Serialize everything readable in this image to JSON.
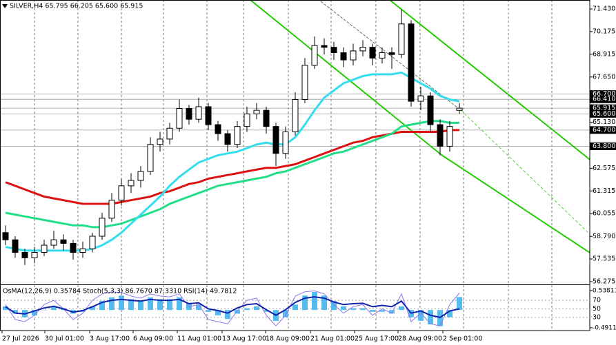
{
  "chart_data": {
    "type": "candlestick",
    "title": "SILVER,H4 65.795 66.205 65.600 65.915",
    "ylim": [
      56.12,
      71.93
    ],
    "yticks": [
      {
        "value": 71.43,
        "label": "71.430"
      },
      70.175,
      68.915,
      {
        "value": 67.65,
        "label": "67.650"
      },
      {
        "value": 65.13,
        "label": "65.130"
      },
      62.575,
      61.315,
      60.055,
      {
        "value": 58.79,
        "label": "58.790"
      },
      57.535,
      56.275
    ],
    "levels": [
      {
        "value": 66.7,
        "label": "66.700"
      },
      {
        "value": 66.41,
        "label": "66.410"
      },
      65.915,
      {
        "value": 65.6,
        "label": "65.600"
      },
      {
        "value": 64.7,
        "label": "64.700"
      },
      {
        "value": 63.8,
        "label": "63.800"
      }
    ],
    "x_labels": [
      "27 Jul 2026",
      "30 Jul 01:00",
      "3 Aug 17:00",
      "6 Aug 09:00",
      "11 Aug 01:00",
      "13 Aug 17:00",
      "18 Aug 09:00",
      "21 Aug 01:00",
      "25 Aug 17:00",
      "28 Aug 09:00",
      "2 Sep 01:00"
    ],
    "open": [
      59.0,
      58.6,
      57.9,
      57.6,
      57.9,
      58.3,
      58.6,
      58.4,
      57.9,
      58.1,
      58.8,
      59.8,
      60.8,
      61.6,
      61.9,
      62.4,
      63.9,
      64.2,
      64.8,
      65.9,
      65.3,
      66.0,
      65.0,
      64.5,
      63.9,
      64.9,
      65.6,
      65.8,
      64.9,
      63.4,
      64.6,
      66.4,
      68.3,
      69.4,
      69.3,
      69.0,
      68.6,
      69.1,
      69.3,
      68.7,
      69.0,
      68.9,
      70.6,
      66.3,
      66.6,
      65.0,
      63.8,
      65.795
    ],
    "high": [
      59.4,
      58.8,
      58.1,
      58.2,
      58.6,
      59.1,
      58.9,
      58.6,
      58.5,
      59.0,
      60.1,
      61.2,
      62.0,
      62.3,
      62.7,
      64.3,
      64.6,
      65.1,
      66.4,
      66.1,
      66.5,
      66.2,
      65.2,
      64.7,
      65.2,
      66.0,
      66.2,
      66.0,
      65.1,
      64.9,
      66.8,
      68.7,
      69.9,
      69.8,
      69.6,
      69.3,
      69.5,
      69.7,
      69.5,
      69.3,
      69.3,
      71.4,
      70.8,
      67.1,
      66.8,
      65.3,
      65.2,
      66.205
    ],
    "low": [
      58.3,
      57.6,
      57.2,
      57.3,
      57.7,
      58.1,
      58.0,
      57.5,
      57.6,
      57.9,
      58.6,
      59.6,
      60.5,
      61.2,
      61.5,
      62.2,
      63.5,
      63.9,
      64.6,
      65.0,
      65.1,
      64.7,
      64.1,
      63.5,
      63.7,
      64.6,
      65.3,
      64.5,
      62.7,
      63.1,
      64.4,
      66.2,
      68.1,
      68.9,
      68.6,
      68.2,
      68.3,
      68.8,
      68.3,
      68.4,
      68.1,
      68.7,
      66.0,
      65.8,
      64.6,
      63.3,
      63.5,
      65.6
    ],
    "close": [
      58.6,
      57.9,
      57.6,
      57.9,
      58.3,
      58.6,
      58.4,
      57.9,
      58.1,
      58.8,
      59.8,
      60.8,
      61.6,
      61.9,
      62.4,
      63.9,
      64.2,
      64.8,
      65.9,
      65.3,
      66.0,
      65.0,
      64.5,
      63.9,
      64.9,
      65.6,
      65.8,
      64.9,
      63.4,
      64.6,
      66.4,
      68.3,
      69.4,
      69.3,
      69.0,
      68.6,
      69.1,
      69.3,
      68.7,
      69.0,
      68.9,
      70.6,
      66.3,
      66.6,
      65.0,
      63.8,
      64.9,
      65.915
    ],
    "ma_fast": {
      "color": "#33ddee",
      "values": [
        58.2,
        58.1,
        58.0,
        58.0,
        58.0,
        58.0,
        58.0,
        58.0,
        58.0,
        58.1,
        58.3,
        58.6,
        59.0,
        59.5,
        60.0,
        60.5,
        61.0,
        61.6,
        62.1,
        62.5,
        62.9,
        63.1,
        63.3,
        63.4,
        63.5,
        63.7,
        63.9,
        64.0,
        63.9,
        63.9,
        64.3,
        65.0,
        65.8,
        66.5,
        66.9,
        67.3,
        67.5,
        67.7,
        67.8,
        67.8,
        67.8,
        67.9,
        67.6,
        67.3,
        67.0,
        66.6,
        66.4,
        66.3
      ]
    },
    "ma_mid": {
      "color": "#22dd88",
      "values": [
        60.1,
        60.0,
        59.9,
        59.8,
        59.7,
        59.6,
        59.5,
        59.4,
        59.4,
        59.3,
        59.3,
        59.4,
        59.5,
        59.7,
        59.9,
        60.1,
        60.3,
        60.6,
        60.8,
        61.0,
        61.2,
        61.4,
        61.6,
        61.7,
        61.8,
        61.9,
        62.0,
        62.1,
        62.3,
        62.4,
        62.6,
        62.8,
        63.0,
        63.2,
        63.4,
        63.5,
        63.7,
        63.9,
        64.1,
        64.3,
        64.5,
        64.9,
        65.0,
        65.1,
        65.2,
        65.2,
        65.1,
        65.1
      ]
    },
    "ma_slow": {
      "color": "#dd1111",
      "values": [
        61.8,
        61.6,
        61.4,
        61.2,
        61.0,
        60.9,
        60.8,
        60.7,
        60.6,
        60.6,
        60.6,
        60.6,
        60.7,
        60.8,
        60.9,
        61.0,
        61.2,
        61.3,
        61.5,
        61.7,
        61.8,
        62.0,
        62.1,
        62.2,
        62.3,
        62.4,
        62.5,
        62.6,
        62.6,
        62.7,
        62.8,
        63.0,
        63.2,
        63.4,
        63.6,
        63.8,
        64.0,
        64.1,
        64.3,
        64.4,
        64.5,
        64.6,
        64.6,
        64.6,
        64.6,
        64.6,
        64.7,
        64.7
      ]
    },
    "oscillator": {
      "title": "OsMA(12,26,9) 0.35784 Stoch(5,3,3) 86.7670 87.3310 RSI(14) 49.7812",
      "ylim": [
        -0.57,
        0.71
      ],
      "yticks": [
        0.53811,
        -0.49119
      ],
      "y2lim": [
        -0.8,
        107.2
      ],
      "y2ticks": [
        70,
        50,
        30
      ],
      "osma": {
        "color": "#55bbee",
        "values": [
          0.1,
          -0.1,
          -0.2,
          -0.15,
          0.0,
          0.1,
          0.05,
          -0.1,
          -0.05,
          0.1,
          0.25,
          0.35,
          0.4,
          0.3,
          0.25,
          0.35,
          0.3,
          0.3,
          0.35,
          0.2,
          0.15,
          -0.05,
          -0.15,
          -0.25,
          -0.1,
          0.05,
          0.1,
          -0.05,
          -0.3,
          -0.2,
          0.15,
          0.4,
          0.5,
          0.4,
          0.25,
          0.1,
          0.05,
          0.05,
          -0.05,
          -0.05,
          -0.1,
          0.1,
          -0.2,
          -0.3,
          -0.4,
          -0.45,
          -0.2,
          0.36
        ]
      },
      "stoch": {
        "color": "#8877ee",
        "axis": "y2",
        "values": [
          60,
          25,
          20,
          35,
          60,
          70,
          50,
          25,
          40,
          70,
          85,
          90,
          88,
          80,
          75,
          85,
          80,
          78,
          85,
          55,
          60,
          25,
          20,
          15,
          45,
          70,
          75,
          35,
          10,
          35,
          80,
          90,
          92,
          85,
          60,
          40,
          55,
          60,
          35,
          50,
          40,
          85,
          20,
          40,
          15,
          10,
          60,
          87
        ]
      },
      "rsi": {
        "color": "#1122aa",
        "axis": "y2",
        "values": [
          55,
          40,
          38,
          45,
          52,
          56,
          50,
          42,
          46,
          55,
          65,
          70,
          72,
          70,
          68,
          72,
          70,
          70,
          72,
          62,
          64,
          50,
          46,
          40,
          52,
          60,
          62,
          48,
          35,
          48,
          65,
          75,
          78,
          75,
          66,
          60,
          62,
          63,
          55,
          58,
          55,
          68,
          40,
          45,
          35,
          30,
          45,
          50
        ]
      }
    }
  }
}
